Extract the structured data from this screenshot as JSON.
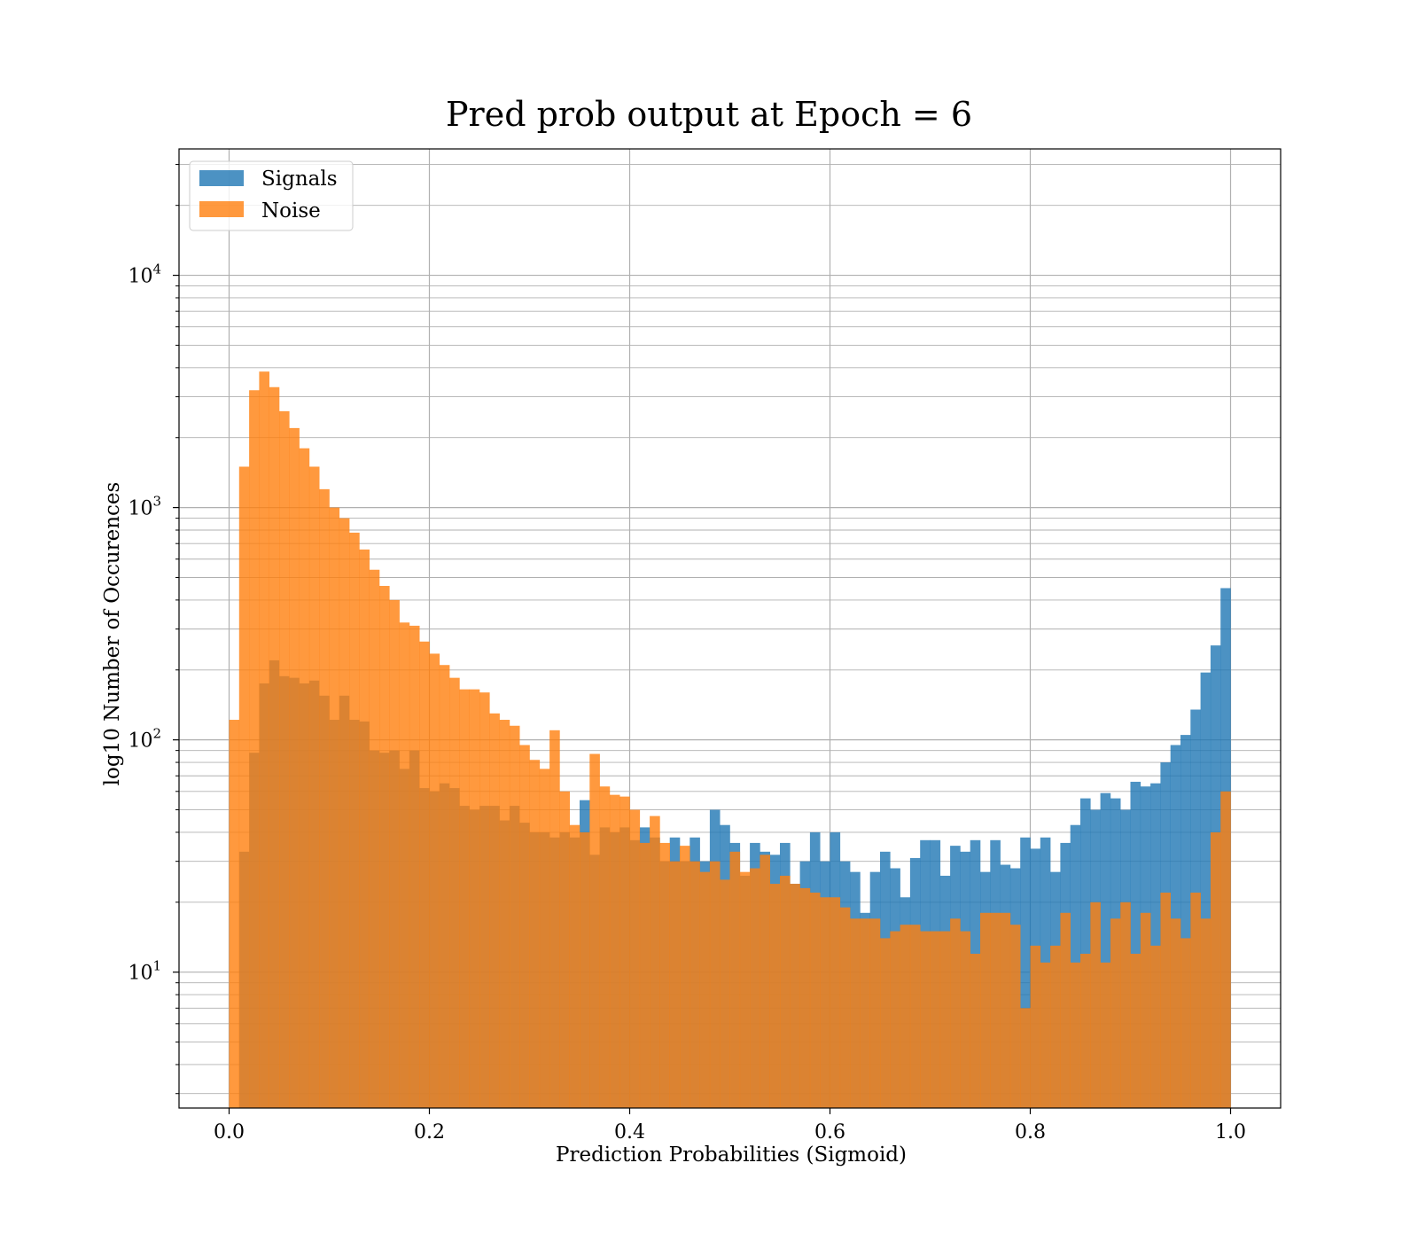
{
  "chart_data": {
    "type": "bar",
    "title": "Pred prob output at Epoch = 6",
    "xlabel": "Prediction Probabilities (Sigmoid)",
    "ylabel": "log10 Number of Occurences",
    "xlim": [
      -0.05,
      1.05
    ],
    "ylim": [
      2.6,
      35000
    ],
    "yscale": "log",
    "grid": true,
    "legend_position": "top-left",
    "x_ticks": [
      {
        "value": 0.0,
        "label": "0.0"
      },
      {
        "value": 0.2,
        "label": "0.2"
      },
      {
        "value": 0.4,
        "label": "0.4"
      },
      {
        "value": 0.6,
        "label": "0.6"
      },
      {
        "value": 0.8,
        "label": "0.8"
      },
      {
        "value": 1.0,
        "label": "1.0"
      }
    ],
    "y_ticks": [
      {
        "value": 10,
        "base": "10",
        "exp": "1"
      },
      {
        "value": 100,
        "base": "10",
        "exp": "2"
      },
      {
        "value": 1000,
        "base": "10",
        "exp": "3"
      },
      {
        "value": 10000,
        "base": "10",
        "exp": "4"
      }
    ],
    "bin_edges": {
      "start": 0.0,
      "width": 0.01,
      "count": 100
    },
    "series": [
      {
        "name": "Signals",
        "color": "#1f77b4",
        "values": [
          0,
          33,
          88,
          175,
          220,
          188,
          185,
          175,
          180,
          155,
          122,
          155,
          122,
          120,
          90,
          88,
          90,
          75,
          90,
          62,
          60,
          65,
          62,
          52,
          50,
          52,
          52,
          45,
          52,
          44,
          40,
          40,
          38,
          40,
          38,
          55,
          32,
          42,
          40,
          42,
          37,
          42,
          38,
          30,
          38,
          30,
          38,
          30,
          50,
          43,
          36,
          26,
          36,
          33,
          32,
          36,
          24,
          30,
          40,
          30,
          40,
          30,
          27,
          18,
          27,
          33,
          28,
          21,
          31,
          37,
          37,
          26,
          35,
          33,
          37,
          27,
          37,
          29,
          28,
          38,
          34,
          38,
          27,
          36,
          43,
          56,
          50,
          59,
          56,
          50,
          66,
          63,
          65,
          80,
          95,
          105,
          135,
          195,
          255,
          450
        ]
      },
      {
        "name": "Noise",
        "color": "#ff7f0e",
        "values": [
          122,
          1500,
          3200,
          3850,
          3300,
          2600,
          2200,
          1800,
          1500,
          1200,
          1000,
          900,
          780,
          660,
          540,
          460,
          400,
          320,
          310,
          265,
          235,
          210,
          185,
          165,
          165,
          160,
          130,
          122,
          115,
          95,
          82,
          75,
          110,
          60,
          43,
          40,
          87,
          63,
          58,
          57,
          50,
          36,
          47,
          36,
          30,
          35,
          30,
          27,
          30,
          25,
          33,
          27,
          28,
          32,
          24,
          26,
          24,
          23,
          22,
          21,
          21,
          19,
          17,
          17,
          17,
          14,
          15,
          16,
          16,
          15,
          15,
          15,
          17,
          15,
          12,
          18,
          18,
          18,
          16,
          7,
          13,
          11,
          13,
          18,
          11,
          12,
          20,
          11,
          17,
          20,
          12,
          18,
          13,
          22,
          17,
          14,
          22,
          17,
          40,
          60
        ]
      }
    ]
  }
}
